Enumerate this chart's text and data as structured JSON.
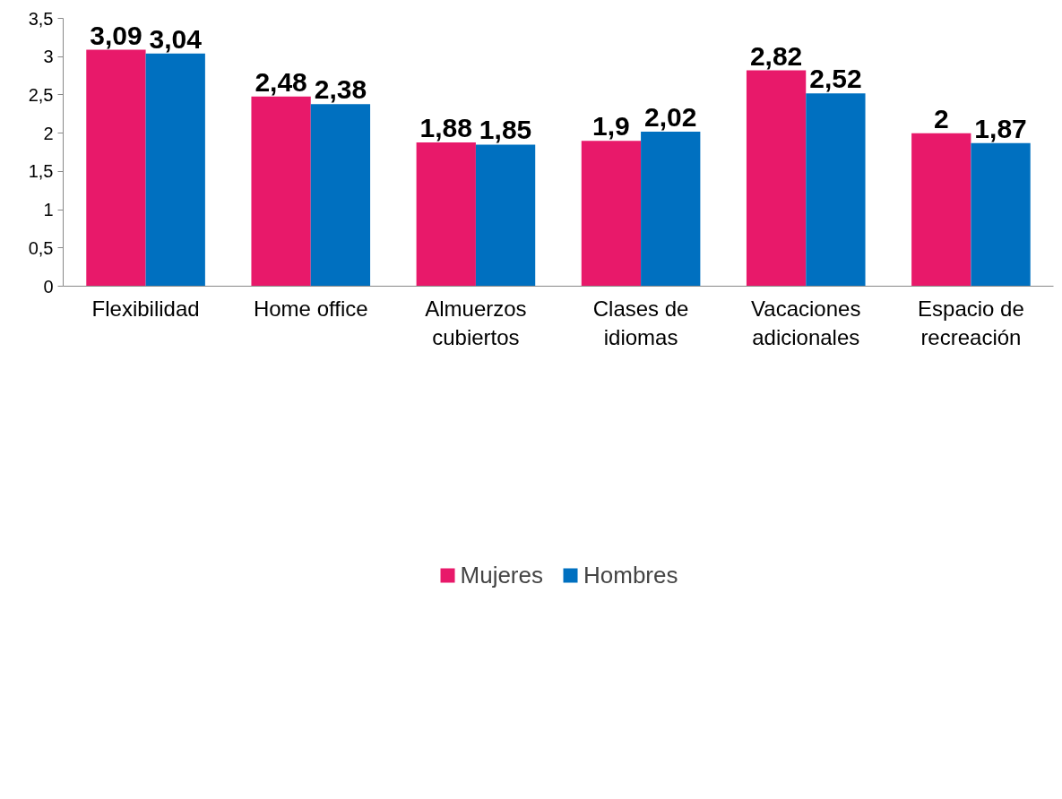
{
  "chart_data": {
    "type": "bar",
    "categories": [
      "Flexibilidad",
      "Home office",
      "Almuerzos\ncubiertos",
      "Clases de\nidiomas",
      "Vacaciones\nadicionales",
      "Espacio de\nrecreación"
    ],
    "series": [
      {
        "name": "Mujeres",
        "color": "#e8196a",
        "values": [
          3.09,
          2.48,
          1.88,
          1.9,
          2.82,
          2
        ],
        "value_labels": [
          "3,09",
          "2,48",
          "1,88",
          "1,9",
          "2,82",
          "2"
        ]
      },
      {
        "name": "Hombres",
        "color": "#0070c0",
        "values": [
          3.04,
          2.38,
          1.85,
          2.02,
          2.52,
          1.87
        ],
        "value_labels": [
          "3,04",
          "2,38",
          "1,85",
          "2,02",
          "2,52",
          "1,87"
        ]
      }
    ],
    "ylim": [
      0,
      3.5
    ],
    "yticks": [
      0,
      {
        "value": 0.5,
        "label": "0,5"
      },
      1,
      {
        "value": 1.5,
        "label": "1,5"
      },
      2,
      {
        "value": 2.5,
        "label": "2,5"
      },
      3,
      {
        "value": 3.5,
        "label": "3,5"
      }
    ],
    "grid": false,
    "legend": "bottom"
  }
}
